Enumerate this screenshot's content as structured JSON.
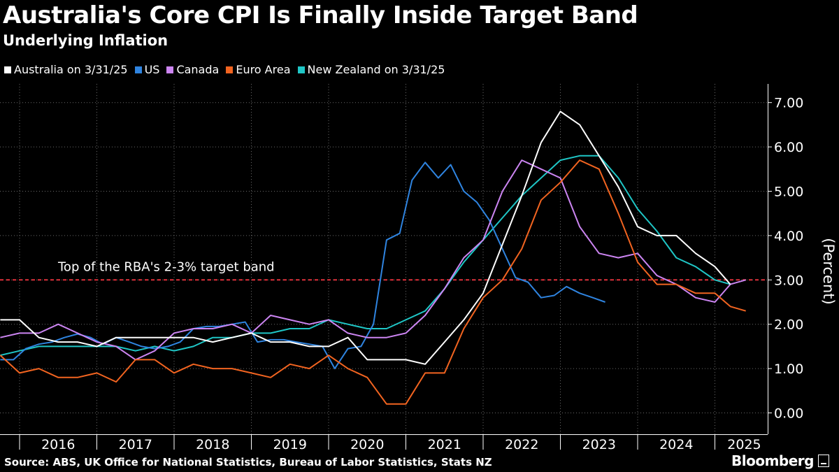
{
  "chart_data": {
    "type": "line",
    "title": "Australia's Core CPI Is Finally Inside Target Band",
    "subtitle": "Underlying Inflation",
    "ylabel": "(Percent)",
    "ylim": [
      -0.4,
      7.4
    ],
    "yticks": [
      0,
      1,
      2,
      3,
      4,
      5,
      6,
      7
    ],
    "ytick_labels": [
      "0.00",
      "1.00",
      "2.00",
      "3.00",
      "4.00",
      "5.00",
      "6.00",
      "7.00"
    ],
    "x_start": 2015.5,
    "x_end": 2025.42,
    "x_tick_labels": [
      {
        "label": "2016",
        "x": 2016
      },
      {
        "label": "2017",
        "x": 2017
      },
      {
        "label": "2018",
        "x": 2018
      },
      {
        "label": "2019",
        "x": 2019
      },
      {
        "label": "2020",
        "x": 2020
      },
      {
        "label": "2021",
        "x": 2021
      },
      {
        "label": "2022",
        "x": 2022
      },
      {
        "label": "2023",
        "x": 2023
      },
      {
        "label": "2024",
        "x": 2024
      },
      {
        "label": "2025",
        "x": 2024.88
      }
    ],
    "grid": true,
    "legend_position": "top-left",
    "reference_line": {
      "y": 3.0,
      "label": "Top of the RBA's 2-3% target band",
      "color": "#e0303a"
    },
    "series": [
      {
        "name": "Australia on 3/31/25",
        "color": "#ffffff",
        "points": [
          [
            2015.5,
            2.1
          ],
          [
            2015.75,
            2.1
          ],
          [
            2016.0,
            1.7
          ],
          [
            2016.25,
            1.6
          ],
          [
            2016.5,
            1.6
          ],
          [
            2016.75,
            1.5
          ],
          [
            2017.0,
            1.7
          ],
          [
            2017.25,
            1.7
          ],
          [
            2017.5,
            1.7
          ],
          [
            2017.75,
            1.7
          ],
          [
            2018.0,
            1.7
          ],
          [
            2018.25,
            1.6
          ],
          [
            2018.5,
            1.7
          ],
          [
            2018.75,
            1.8
          ],
          [
            2019.0,
            1.6
          ],
          [
            2019.25,
            1.6
          ],
          [
            2019.5,
            1.5
          ],
          [
            2019.75,
            1.5
          ],
          [
            2020.0,
            1.7
          ],
          [
            2020.25,
            1.2
          ],
          [
            2020.5,
            1.2
          ],
          [
            2020.75,
            1.2
          ],
          [
            2021.0,
            1.1
          ],
          [
            2021.25,
            1.6
          ],
          [
            2021.5,
            2.1
          ],
          [
            2021.75,
            2.7
          ],
          [
            2022.0,
            3.8
          ],
          [
            2022.25,
            4.9
          ],
          [
            2022.5,
            6.1
          ],
          [
            2022.75,
            6.8
          ],
          [
            2023.0,
            6.5
          ],
          [
            2023.25,
            5.8
          ],
          [
            2023.5,
            5.1
          ],
          [
            2023.75,
            4.2
          ],
          [
            2024.0,
            4.0
          ],
          [
            2024.25,
            4.0
          ],
          [
            2024.5,
            3.6
          ],
          [
            2024.75,
            3.3
          ],
          [
            2024.95,
            2.9
          ]
        ]
      },
      {
        "name": "US",
        "color": "#2f84e0",
        "points": [
          [
            2015.5,
            1.2
          ],
          [
            2015.67,
            1.2
          ],
          [
            2015.83,
            1.45
          ],
          [
            2016.0,
            1.55
          ],
          [
            2016.17,
            1.6
          ],
          [
            2016.33,
            1.7
          ],
          [
            2016.5,
            1.78
          ],
          [
            2016.67,
            1.7
          ],
          [
            2016.83,
            1.55
          ],
          [
            2017.0,
            1.7
          ],
          [
            2017.17,
            1.6
          ],
          [
            2017.33,
            1.5
          ],
          [
            2017.5,
            1.45
          ],
          [
            2017.67,
            1.5
          ],
          [
            2017.83,
            1.6
          ],
          [
            2018.0,
            1.9
          ],
          [
            2018.17,
            1.95
          ],
          [
            2018.33,
            1.95
          ],
          [
            2018.5,
            2.0
          ],
          [
            2018.67,
            2.05
          ],
          [
            2018.83,
            1.6
          ],
          [
            2019.0,
            1.65
          ],
          [
            2019.17,
            1.65
          ],
          [
            2019.33,
            1.6
          ],
          [
            2019.5,
            1.55
          ],
          [
            2019.67,
            1.5
          ],
          [
            2019.83,
            1.0
          ],
          [
            2020.0,
            1.45
          ],
          [
            2020.17,
            1.5
          ],
          [
            2020.33,
            2.0
          ],
          [
            2020.5,
            3.9
          ],
          [
            2020.67,
            4.05
          ],
          [
            2020.83,
            5.25
          ],
          [
            2021.0,
            5.65
          ],
          [
            2021.17,
            5.3
          ],
          [
            2021.33,
            5.6
          ],
          [
            2021.5,
            5.0
          ],
          [
            2021.67,
            4.75
          ],
          [
            2021.83,
            4.35
          ],
          [
            2022.0,
            3.7
          ],
          [
            2022.17,
            3.05
          ],
          [
            2022.33,
            2.95
          ],
          [
            2022.5,
            2.6
          ],
          [
            2022.67,
            2.65
          ],
          [
            2022.83,
            2.85
          ],
          [
            2023.0,
            2.7
          ],
          [
            2023.17,
            2.6
          ],
          [
            2023.33,
            2.5
          ]
        ]
      },
      {
        "name": "Canada",
        "color": "#cc85f2",
        "points": [
          [
            2015.5,
            1.7
          ],
          [
            2015.75,
            1.8
          ],
          [
            2016.0,
            1.8
          ],
          [
            2016.25,
            2.0
          ],
          [
            2016.5,
            1.8
          ],
          [
            2016.75,
            1.6
          ],
          [
            2017.0,
            1.5
          ],
          [
            2017.25,
            1.2
          ],
          [
            2017.5,
            1.4
          ],
          [
            2017.75,
            1.8
          ],
          [
            2018.0,
            1.9
          ],
          [
            2018.25,
            1.9
          ],
          [
            2018.5,
            2.0
          ],
          [
            2018.75,
            1.8
          ],
          [
            2019.0,
            2.2
          ],
          [
            2019.25,
            2.1
          ],
          [
            2019.5,
            2.0
          ],
          [
            2019.75,
            2.1
          ],
          [
            2020.0,
            1.8
          ],
          [
            2020.25,
            1.7
          ],
          [
            2020.5,
            1.7
          ],
          [
            2020.75,
            1.8
          ],
          [
            2021.0,
            2.2
          ],
          [
            2021.25,
            2.8
          ],
          [
            2021.5,
            3.5
          ],
          [
            2021.75,
            3.9
          ],
          [
            2022.0,
            5.0
          ],
          [
            2022.25,
            5.7
          ],
          [
            2022.5,
            5.5
          ],
          [
            2022.75,
            5.3
          ],
          [
            2023.0,
            4.2
          ],
          [
            2023.25,
            3.6
          ],
          [
            2023.5,
            3.5
          ],
          [
            2023.75,
            3.6
          ],
          [
            2024.0,
            3.1
          ],
          [
            2024.25,
            2.9
          ],
          [
            2024.5,
            2.6
          ],
          [
            2024.75,
            2.5
          ],
          [
            2024.95,
            2.9
          ],
          [
            2025.15,
            3.0
          ]
        ]
      },
      {
        "name": "Euro Area",
        "color": "#f26420",
        "points": [
          [
            2015.5,
            1.3
          ],
          [
            2015.75,
            0.9
          ],
          [
            2016.0,
            1.0
          ],
          [
            2016.25,
            0.8
          ],
          [
            2016.5,
            0.8
          ],
          [
            2016.75,
            0.9
          ],
          [
            2017.0,
            0.7
          ],
          [
            2017.25,
            1.2
          ],
          [
            2017.5,
            1.2
          ],
          [
            2017.75,
            0.9
          ],
          [
            2018.0,
            1.1
          ],
          [
            2018.25,
            1.0
          ],
          [
            2018.5,
            1.0
          ],
          [
            2018.75,
            0.9
          ],
          [
            2019.0,
            0.8
          ],
          [
            2019.25,
            1.1
          ],
          [
            2019.5,
            1.0
          ],
          [
            2019.75,
            1.3
          ],
          [
            2020.0,
            1.0
          ],
          [
            2020.25,
            0.8
          ],
          [
            2020.5,
            0.2
          ],
          [
            2020.75,
            0.2
          ],
          [
            2021.0,
            0.9
          ],
          [
            2021.25,
            0.9
          ],
          [
            2021.5,
            1.9
          ],
          [
            2021.75,
            2.6
          ],
          [
            2022.0,
            3.0
          ],
          [
            2022.25,
            3.7
          ],
          [
            2022.5,
            4.8
          ],
          [
            2022.75,
            5.2
          ],
          [
            2023.0,
            5.7
          ],
          [
            2023.25,
            5.5
          ],
          [
            2023.5,
            4.5
          ],
          [
            2023.75,
            3.4
          ],
          [
            2024.0,
            2.9
          ],
          [
            2024.25,
            2.9
          ],
          [
            2024.5,
            2.7
          ],
          [
            2024.75,
            2.7
          ],
          [
            2024.95,
            2.4
          ],
          [
            2025.15,
            2.3
          ]
        ]
      },
      {
        "name": "New Zealand on 3/31/25",
        "color": "#1fc6c6",
        "points": [
          [
            2015.5,
            1.3
          ],
          [
            2015.75,
            1.4
          ],
          [
            2016.0,
            1.5
          ],
          [
            2016.25,
            1.5
          ],
          [
            2016.5,
            1.5
          ],
          [
            2016.75,
            1.5
          ],
          [
            2017.0,
            1.5
          ],
          [
            2017.25,
            1.4
          ],
          [
            2017.5,
            1.5
          ],
          [
            2017.75,
            1.4
          ],
          [
            2018.0,
            1.5
          ],
          [
            2018.25,
            1.7
          ],
          [
            2018.5,
            1.7
          ],
          [
            2018.75,
            1.8
          ],
          [
            2019.0,
            1.8
          ],
          [
            2019.25,
            1.9
          ],
          [
            2019.5,
            1.9
          ],
          [
            2019.75,
            2.1
          ],
          [
            2020.0,
            2.0
          ],
          [
            2020.25,
            1.9
          ],
          [
            2020.5,
            1.9
          ],
          [
            2020.75,
            2.1
          ],
          [
            2021.0,
            2.3
          ],
          [
            2021.25,
            2.8
          ],
          [
            2021.5,
            3.4
          ],
          [
            2021.75,
            3.9
          ],
          [
            2022.0,
            4.4
          ],
          [
            2022.25,
            4.9
          ],
          [
            2022.5,
            5.3
          ],
          [
            2022.75,
            5.7
          ],
          [
            2023.0,
            5.8
          ],
          [
            2023.25,
            5.8
          ],
          [
            2023.5,
            5.3
          ],
          [
            2023.75,
            4.6
          ],
          [
            2024.0,
            4.1
          ],
          [
            2024.25,
            3.5
          ],
          [
            2024.5,
            3.3
          ],
          [
            2024.75,
            3.0
          ],
          [
            2024.95,
            2.9
          ]
        ]
      }
    ]
  },
  "source": "Source: ABS, UK Office for National Statistics, Bureau of Labor Statistics, Stats NZ",
  "brand": "Bloomberg"
}
